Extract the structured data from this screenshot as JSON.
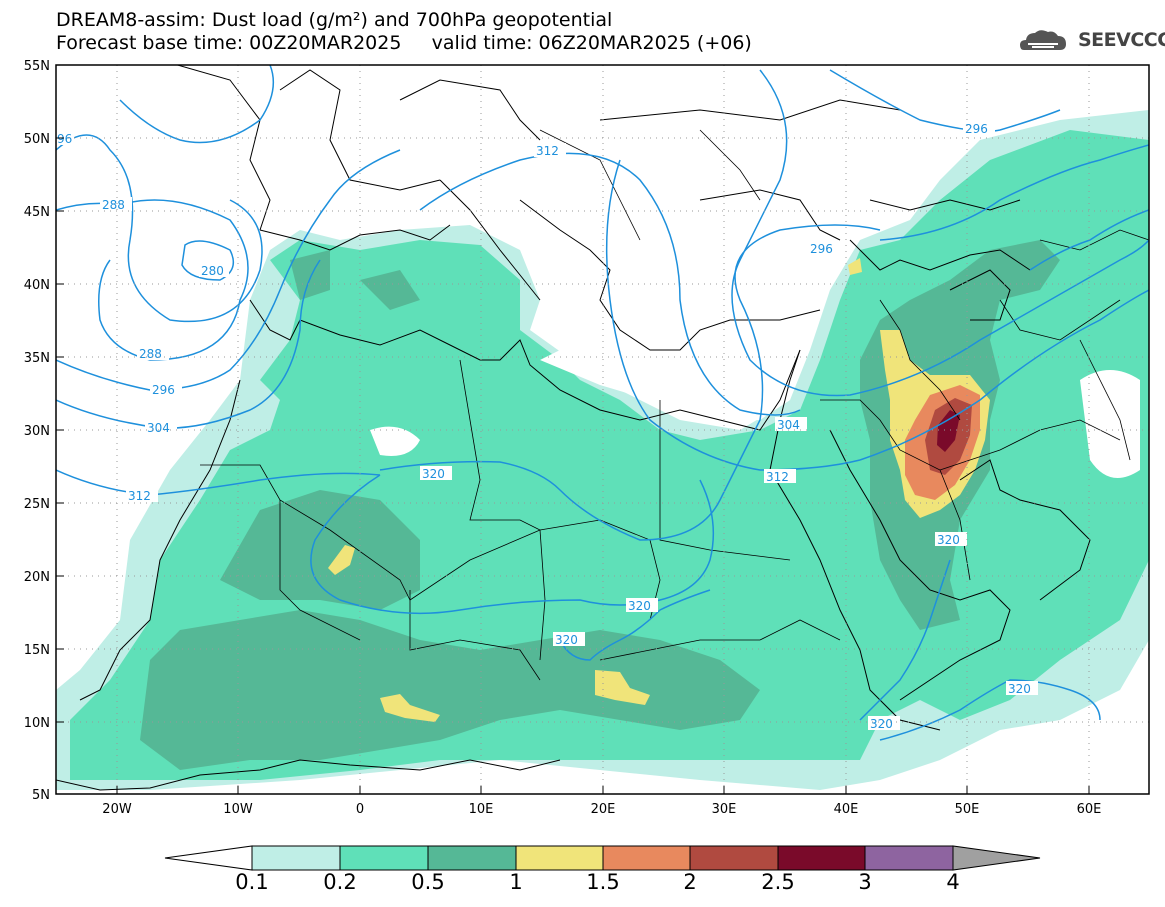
{
  "header": {
    "title_line1": "DREAM8-assim: Dust load (g/m²) and 700hPa geopotential",
    "title_line2": "Forecast base time: 00Z20MAR2025     valid time: 06Z20MAR2025 (+06)",
    "logo": "SEEVCCC",
    "logo_icon": "cloud-icon"
  },
  "map": {
    "lon_range": [
      -25,
      65
    ],
    "lat_range": [
      5,
      55
    ],
    "lat_ticks": [
      "55N",
      "50N",
      "45N",
      "40N",
      "35N",
      "30N",
      "25N",
      "20N",
      "15N",
      "10N",
      "5N"
    ],
    "lon_ticks": [
      "20W",
      "10W",
      "0",
      "10E",
      "20E",
      "30E",
      "40E",
      "50E",
      "60E"
    ],
    "contour_color": "#1e90dc",
    "contour_labels": [
      "96",
      "288",
      "280",
      "288",
      "296",
      "304",
      "312",
      "312",
      "296",
      "296",
      "304",
      "312",
      "320",
      "320",
      "320",
      "320",
      "320",
      "320"
    ]
  },
  "colorbar": {
    "labels": [
      "0.1",
      "0.2",
      "0.5",
      "1",
      "1.5",
      "2",
      "2.5",
      "3",
      "4"
    ],
    "colors": [
      "#bfeee6",
      "#5fe0b8",
      "#55b896",
      "#f0e47a",
      "#e8895e",
      "#b04a40",
      "#7a0a2a",
      "#8e64a0"
    ],
    "over_color": "#a0a0a0",
    "under_color": "#ffffff"
  }
}
